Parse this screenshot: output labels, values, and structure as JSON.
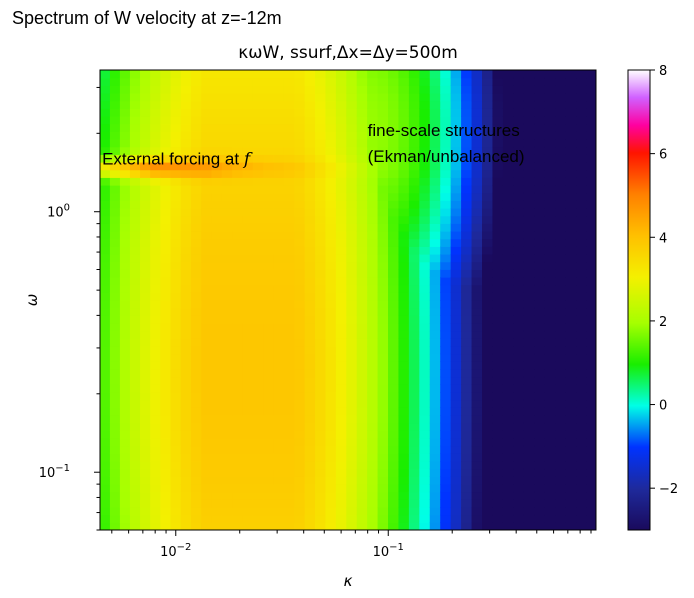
{
  "figure": {
    "suptitle": "Spectrum of W velocity at z=-12m"
  },
  "chart_data": {
    "type": "heatmap",
    "title": "κωW, ssurf,Δx=Δy=500m",
    "xlabel": "κ",
    "ylabel": "ω",
    "x_scale": "log",
    "y_scale": "log",
    "xlim": [
      0.0044,
      0.95
    ],
    "ylim": [
      0.06,
      3.5
    ],
    "x_ticks": [
      {
        "value": 0.01,
        "label": "10",
        "exp": "−2"
      },
      {
        "value": 0.1,
        "label": "10",
        "exp": "−1"
      }
    ],
    "y_ticks": [
      {
        "value": 0.1,
        "label": "10",
        "exp": "−1"
      },
      {
        "value": 1,
        "label": "10",
        "exp": "0"
      }
    ],
    "colorbar": {
      "range": [
        -3,
        8
      ],
      "ticks": [
        -2,
        0,
        2,
        4,
        6,
        8
      ],
      "tick_labels": [
        "−2",
        "0",
        "2",
        "4",
        "6",
        "8"
      ],
      "stops": [
        [
          0.0,
          "#1a0a5c"
        ],
        [
          0.09,
          "#1e2a9c"
        ],
        [
          0.18,
          "#0033ff"
        ],
        [
          0.27,
          "#00ffe6"
        ],
        [
          0.36,
          "#19ee00"
        ],
        [
          0.45,
          "#a6ff00"
        ],
        [
          0.55,
          "#f4f000"
        ],
        [
          0.64,
          "#ffc000"
        ],
        [
          0.73,
          "#ff8000"
        ],
        [
          0.82,
          "#ff1400"
        ],
        [
          0.88,
          "#ff00a0"
        ],
        [
          0.94,
          "#d060ff"
        ],
        [
          1.0,
          "#ffffff"
        ]
      ]
    },
    "annotations": [
      {
        "text": "External forcing at ",
        "math": "f",
        "kappa": 0.0045,
        "omega": 1.52
      },
      {
        "text": "fine-scale structures",
        "kappa": 0.08,
        "omega": 1.95
      },
      {
        "text": "(Ekman/unbalanced)",
        "kappa": 0.08,
        "omega": 1.55
      }
    ]
  }
}
